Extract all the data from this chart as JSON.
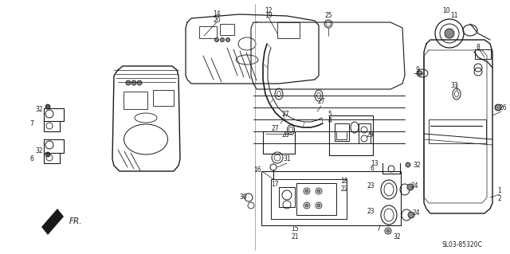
{
  "bg_color": "#ffffff",
  "line_color": "#1a1a1a",
  "fig_width": 6.4,
  "fig_height": 3.19,
  "dpi": 100,
  "diagram_code": "SL03-85320C",
  "fr_label": "FR.",
  "lw": 0.7,
  "font_size": 5.5,
  "img_extent": [
    0,
    640,
    0,
    319
  ]
}
